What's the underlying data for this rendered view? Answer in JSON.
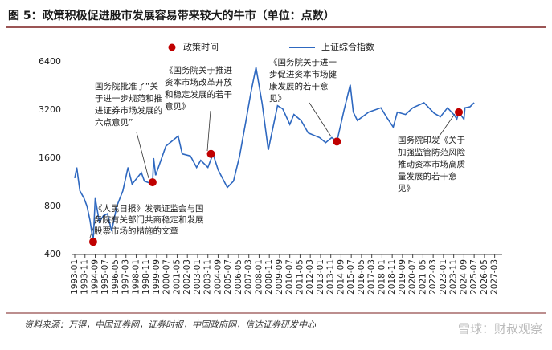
{
  "chart_data": {
    "type": "line",
    "title": "图 5：政策积极促进股市发展容易带来较大的牛市（单位：点数）",
    "source": "资料来源：万得，中国证券网，证券时报，中国政府网，信达证券研发中心",
    "watermark": "雪球：财叔观察",
    "log_scale": true,
    "legend": "top",
    "xlim": [
      "1993-01",
      "2027-08"
    ],
    "ylim": [
      400,
      8250
    ],
    "yticks": [
      400,
      800,
      1600,
      3200,
      6400
    ],
    "xticks": [
      "1993-01",
      "1993-11",
      "1994-09",
      "1995-07",
      "1996-05",
      "1997-03",
      "1998-01",
      "1998-11",
      "1999-09",
      "2000-07",
      "2001-05",
      "2002-03",
      "2003-01",
      "2003-11",
      "2004-09",
      "2005-07",
      "2006-05",
      "2007-03",
      "2008-01",
      "2008-11",
      "2009-09",
      "2010-07",
      "2011-05",
      "2012-03",
      "2013-01",
      "2013-11",
      "2014-09",
      "2015-07",
      "2016-05",
      "2017-03",
      "2018-01",
      "2018-11",
      "2019-09",
      "2020-07",
      "2021-05",
      "2022-03",
      "2023-01",
      "2023-11",
      "2024-09",
      "2025-07",
      "2026-05",
      "2027-03"
    ],
    "series": [
      {
        "name": "上证综合指数",
        "color": "#2e68c0",
        "x": [
          "1993-01",
          "1993-03",
          "1993-06",
          "1993-10",
          "1994-01",
          "1994-04",
          "1994-07",
          "1994-09",
          "1995-01",
          "1995-05",
          "1995-09",
          "1996-01",
          "1996-06",
          "1996-12",
          "1997-05",
          "1997-09",
          "1998-06",
          "1998-09",
          "1999-05",
          "1999-06",
          "1999-08",
          "2000-06",
          "2001-06",
          "2001-10",
          "2002-06",
          "2002-12",
          "2003-04",
          "2003-11",
          "2004-04",
          "2004-09",
          "2005-06",
          "2005-12",
          "2006-06",
          "2006-12",
          "2007-05",
          "2007-10",
          "2008-04",
          "2008-10",
          "2009-07",
          "2009-12",
          "2010-07",
          "2010-11",
          "2011-06",
          "2012-01",
          "2012-12",
          "2013-06",
          "2013-12",
          "2014-05",
          "2014-12",
          "2015-06",
          "2015-09",
          "2016-01",
          "2016-12",
          "2017-12",
          "2018-06",
          "2018-12",
          "2019-04",
          "2019-12",
          "2020-07",
          "2021-06",
          "2022-04",
          "2022-10",
          "2023-05",
          "2023-12",
          "2024-02",
          "2024-04",
          "2024-09",
          "2024-10",
          "2025-03",
          "2025-07"
        ],
        "values": [
          1200,
          1400,
          1000,
          900,
          800,
          650,
          480,
          900,
          640,
          700,
          720,
          560,
          800,
          1000,
          1400,
          1100,
          1300,
          1150,
          1100,
          1600,
          1250,
          1900,
          2200,
          1700,
          1650,
          1400,
          1550,
          1400,
          1700,
          1350,
          1050,
          1150,
          1650,
          2700,
          4100,
          5900,
          3500,
          1800,
          3400,
          3250,
          2600,
          3000,
          2750,
          2300,
          2150,
          2000,
          2150,
          2030,
          3200,
          4600,
          3100,
          2750,
          3100,
          3300,
          2850,
          2500,
          3100,
          3000,
          3300,
          3550,
          3050,
          2900,
          3300,
          2950,
          2800,
          3100,
          2800,
          3300,
          3350,
          3550
        ]
      }
    ],
    "events": {
      "name": "政策时间",
      "color": "#c00000",
      "x": [
        "1994-07",
        "1999-05",
        "2004-02",
        "2014-05",
        "2024-04"
      ],
      "values": [
        480,
        1130,
        1700,
        2030,
        3100
      ]
    },
    "annotations": [
      {
        "lines": [
          "《人民日报》发表证监会与国",
          "务院有关部门共商稳定和发展",
          "股票市场的措施的文章"
        ]
      },
      {
        "lines": [
          "国务院批准了“关",
          "于进一步规范和推",
          "进证券市场发展的",
          "六点意见”"
        ]
      },
      {
        "lines": [
          "《国务院关于推进",
          "资本市场改革开放",
          "和稳定发展的若干",
          "意见》"
        ]
      },
      {
        "lines": [
          "《国务院关于进一",
          "步促进资本市场健",
          "康发展的若干意",
          "见》"
        ]
      },
      {
        "lines": [
          "国务院印发《关于",
          "加强监管防范风险",
          "推动资本市场高质",
          "量发展的若干意",
          "见》"
        ]
      }
    ]
  }
}
